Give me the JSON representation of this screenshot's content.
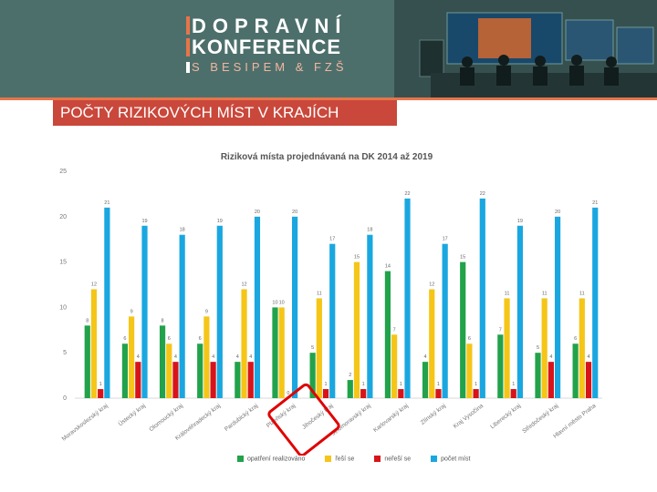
{
  "header": {
    "logo_line1": "DOPRAVNÍ",
    "logo_line2": "KONFERENCE",
    "logo_line3": "S BESIPEM & FZŠ",
    "accent_color": "#e8744a",
    "banner_color": "#4d6f6b"
  },
  "slide_title": "POČTY RIZIKOVÝCH MÍST V KRAJÍCH",
  "chart_data": {
    "type": "bar",
    "title": "Riziková místa projednávaná na DK 2014 až 2019",
    "xlabel": "",
    "ylabel": "",
    "ylim": [
      0,
      25
    ],
    "yticks": [
      0,
      5,
      10,
      15,
      20,
      25
    ],
    "grid": false,
    "legend_position": "bottom",
    "categories": [
      "Moravskoslezský kraj",
      "Ústecký kraj",
      "Olomoucký kraj",
      "Královéhradecký kraj",
      "Pardubický kraj",
      "Plzeňský kraj",
      "Jihočeský kraj",
      "Jihomoravský kraj",
      "Karlovarský kraj",
      "Zlínský kraj",
      "Kraj Vysočina",
      "Liberecký kraj",
      "Středočeský kraj",
      "Hlavní město Praha"
    ],
    "highlighted_category": "Jihočeský kraj",
    "series": [
      {
        "name": "opatření realizováno",
        "color": "#22a24a",
        "values": [
          8,
          6,
          8,
          6,
          4,
          10,
          5,
          2,
          14,
          4,
          15,
          7,
          5,
          6
        ]
      },
      {
        "name": "řeší se",
        "color": "#f5c518",
        "values": [
          12,
          9,
          6,
          9,
          12,
          10,
          11,
          15,
          7,
          12,
          6,
          11,
          11,
          11
        ]
      },
      {
        "name": "neřeší se",
        "color": "#d7141a",
        "values": [
          1,
          4,
          4,
          4,
          4,
          0,
          1,
          1,
          1,
          1,
          1,
          1,
          4,
          4
        ]
      },
      {
        "name": "počet míst",
        "color": "#1aa7e0",
        "values": [
          21,
          19,
          18,
          19,
          20,
          20,
          17,
          18,
          22,
          17,
          22,
          19,
          20,
          21
        ]
      }
    ],
    "data_labels": [
      [
        "8",
        "12",
        "1",
        "21"
      ],
      [
        "6",
        "9",
        "4",
        "19"
      ],
      [
        "8",
        "6",
        "4",
        "18"
      ],
      [
        "6",
        "9",
        "4",
        "19"
      ],
      [
        "4",
        "12",
        "4",
        "20"
      ],
      [
        "10",
        "10",
        "0",
        "20"
      ],
      [
        "5",
        "11",
        "1",
        "17"
      ],
      [
        "2",
        "15",
        "1",
        "18"
      ],
      [
        "14",
        "7",
        "1",
        "22"
      ],
      [
        "4",
        "12",
        "1",
        "17"
      ],
      [
        "15",
        "6",
        "1",
        "22"
      ],
      [
        "7",
        "11",
        "1",
        "19"
      ],
      [
        "5",
        "11",
        "4",
        "20"
      ],
      [
        "6",
        "11",
        "4",
        "21"
      ]
    ]
  }
}
